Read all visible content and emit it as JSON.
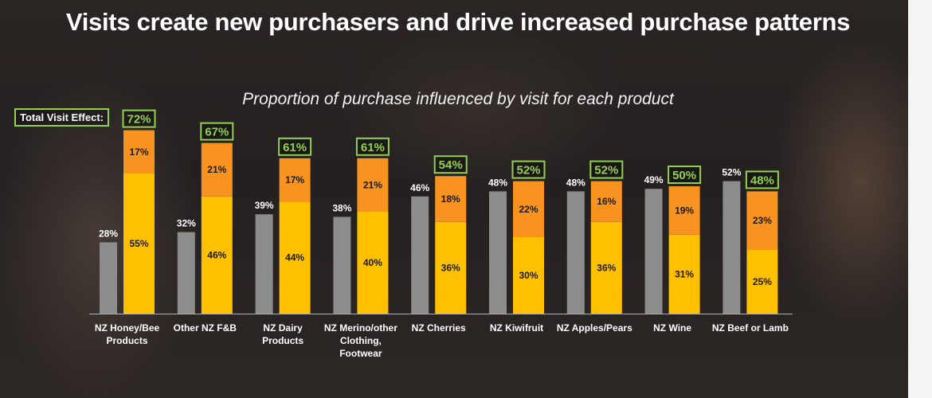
{
  "title": "Visits create new purchasers and drive increased purchase patterns",
  "chart_data": {
    "type": "bar",
    "title": "Proportion of purchase influenced by visit for each product",
    "total_visit_effect_label": "Total Visit Effect:",
    "categories": [
      [
        "NZ Honey/Bee",
        "Products"
      ],
      [
        "Other NZ F&B"
      ],
      [
        "NZ Dairy",
        "Products"
      ],
      [
        "NZ Merino/other",
        "Clothing,",
        "Footwear"
      ],
      [
        "NZ Cherries"
      ],
      [
        "NZ Kiwifruit"
      ],
      [
        "NZ Apples/Pears"
      ],
      [
        "NZ Wine"
      ],
      [
        "NZ Beef or Lamb"
      ]
    ],
    "baseline": [
      28,
      32,
      39,
      38,
      46,
      48,
      48,
      49,
      52
    ],
    "stack_bottom": [
      55,
      46,
      44,
      40,
      36,
      30,
      36,
      31,
      25
    ],
    "stack_top": [
      17,
      21,
      17,
      21,
      18,
      22,
      16,
      19,
      23
    ],
    "total_visit_effect": [
      72,
      67,
      61,
      61,
      54,
      52,
      52,
      50,
      48
    ],
    "ylim": [
      0,
      80
    ],
    "colors": {
      "baseline": "#8c8c8c",
      "stack_bottom": "#ffc000",
      "stack_top": "#f7931e",
      "highlight": "#92d050"
    }
  }
}
